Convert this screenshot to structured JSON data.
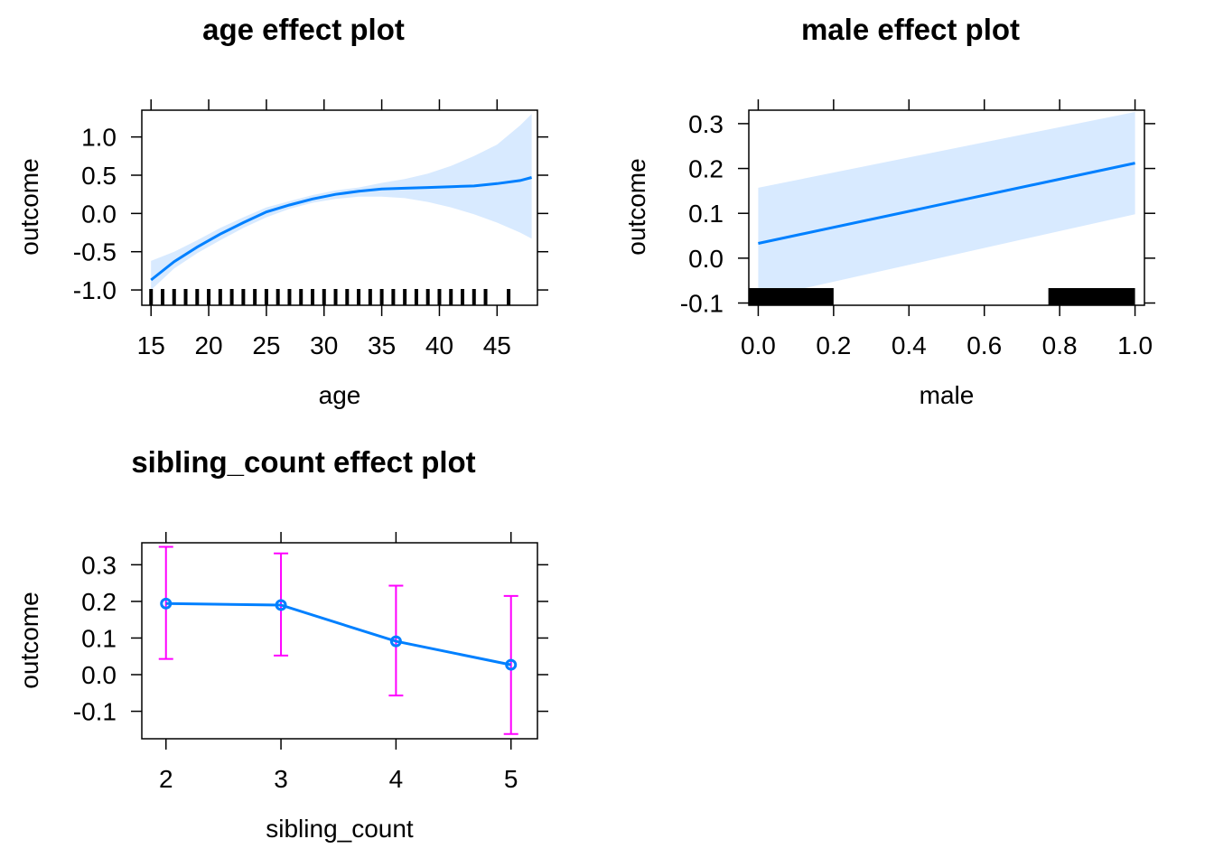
{
  "chart_data": [
    {
      "type": "line",
      "title": "age effect plot",
      "xlabel": "age",
      "ylabel": "outcome",
      "xlim": [
        14.2,
        48.5
      ],
      "ylim": [
        -1.2,
        1.35
      ],
      "x_ticks": [
        15,
        20,
        25,
        30,
        35,
        40,
        45
      ],
      "y_ticks": [
        -1.0,
        -0.5,
        0.0,
        0.5,
        1.0
      ],
      "x_tick_labels": [
        "15",
        "20",
        "25",
        "30",
        "35",
        "40",
        "45"
      ],
      "y_tick_labels": [
        "-1.0",
        "-0.5",
        "0.0",
        "0.5",
        "1.0"
      ],
      "grid": false,
      "series": [
        {
          "x": [
            15,
            17,
            19,
            21,
            23,
            25,
            27,
            29,
            31,
            33,
            35,
            37,
            39,
            41,
            43,
            45,
            47,
            48
          ],
          "y": [
            -0.87,
            -0.63,
            -0.44,
            -0.27,
            -0.12,
            0.02,
            0.11,
            0.19,
            0.25,
            0.29,
            0.32,
            0.33,
            0.34,
            0.35,
            0.36,
            0.39,
            0.43,
            0.47
          ],
          "lower": [
            -1.0,
            -0.72,
            -0.52,
            -0.35,
            -0.19,
            -0.05,
            0.06,
            0.14,
            0.19,
            0.22,
            0.22,
            0.2,
            0.15,
            0.08,
            -0.01,
            -0.12,
            -0.25,
            -0.33
          ],
          "upper": [
            -0.62,
            -0.5,
            -0.35,
            -0.19,
            -0.05,
            0.08,
            0.16,
            0.24,
            0.3,
            0.34,
            0.4,
            0.45,
            0.52,
            0.62,
            0.75,
            0.9,
            1.15,
            1.3
          ]
        }
      ],
      "rug_x": [
        15,
        16,
        17,
        18,
        19,
        20,
        21,
        22,
        23,
        24,
        25,
        26,
        27,
        28,
        29,
        30,
        31,
        32,
        33,
        34,
        35,
        36,
        37,
        38,
        39,
        40,
        41,
        42,
        43,
        44,
        46
      ]
    },
    {
      "type": "line",
      "title": "male effect plot",
      "xlabel": "male",
      "ylabel": "outcome",
      "xlim": [
        -0.025,
        1.025
      ],
      "ylim": [
        -0.105,
        0.33
      ],
      "x_ticks": [
        0.0,
        0.2,
        0.4,
        0.6,
        0.8,
        1.0
      ],
      "y_ticks": [
        -0.1,
        0.0,
        0.1,
        0.2,
        0.3
      ],
      "x_tick_labels": [
        "0.0",
        "0.2",
        "0.4",
        "0.6",
        "0.8",
        "1.0"
      ],
      "y_tick_labels": [
        "-0.1",
        "0.0",
        "0.1",
        "0.2",
        "0.3"
      ],
      "grid": false,
      "series": [
        {
          "x": [
            0.0,
            1.0
          ],
          "y": [
            0.033,
            0.212
          ],
          "lower": [
            -0.09,
            0.098
          ],
          "upper": [
            0.157,
            0.326
          ]
        }
      ],
      "rug_blocks": [
        [
          0.0,
          0.2
        ],
        [
          0.8,
          1.0
        ]
      ]
    },
    {
      "type": "line",
      "title": "sibling_count effect plot",
      "xlabel": "sibling_count",
      "ylabel": "outcome",
      "xlim": [
        1.79,
        5.23
      ],
      "ylim": [
        -0.175,
        0.36
      ],
      "x_ticks": [
        2,
        3,
        4,
        5
      ],
      "y_ticks": [
        -0.1,
        0.0,
        0.1,
        0.2,
        0.3
      ],
      "x_tick_labels": [
        "2",
        "3",
        "4",
        "5"
      ],
      "y_tick_labels": [
        "-0.1",
        "0.0",
        "0.1",
        "0.2",
        "0.3"
      ],
      "grid": false,
      "series": [
        {
          "x": [
            2,
            3,
            4,
            5
          ],
          "y": [
            0.194,
            0.19,
            0.091,
            0.027
          ],
          "lower": [
            0.043,
            0.052,
            -0.057,
            -0.162
          ],
          "upper": [
            0.349,
            0.331,
            0.243,
            0.215
          ]
        }
      ]
    }
  ],
  "colors": {
    "line": "#0080ff",
    "band": "#d8eaff",
    "errorbar": "#ff00ff",
    "rug": "#000000",
    "axis": "#000000"
  }
}
